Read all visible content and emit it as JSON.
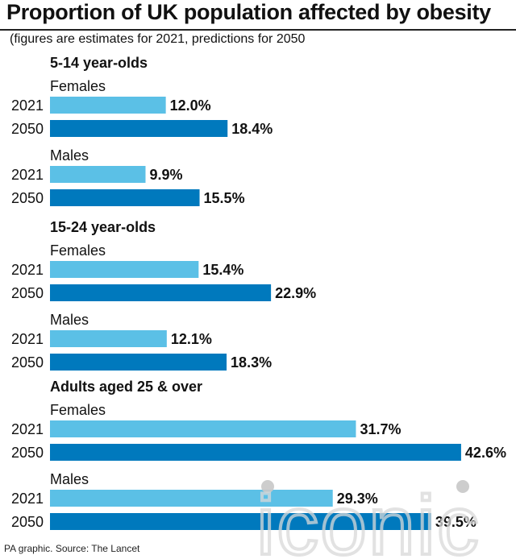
{
  "header": {
    "title": "Proportion of UK population affected by obesity",
    "subtitle": "(figures are estimates for 2021, predictions for 2050"
  },
  "footer": {
    "source": "PA graphic. Source: The Lancet"
  },
  "watermark": {
    "text": "iconic"
  },
  "colors": {
    "bar_2021": "#5bc0e6",
    "bar_2050": "#0079bd",
    "text": "#111111"
  },
  "chart_data": {
    "type": "bar",
    "orientation": "horizontal",
    "unit": "%",
    "groups": [
      {
        "label": "5-14 year-olds",
        "subgroups": [
          {
            "label": "Females",
            "bars": [
              {
                "year": "2021",
                "value": 12.0,
                "label": "12.0%"
              },
              {
                "year": "2050",
                "value": 18.4,
                "label": "18.4%"
              }
            ]
          },
          {
            "label": "Males",
            "bars": [
              {
                "year": "2021",
                "value": 9.9,
                "label": "9.9%"
              },
              {
                "year": "2050",
                "value": 15.5,
                "label": "15.5%"
              }
            ]
          }
        ]
      },
      {
        "label": "15-24 year-olds",
        "subgroups": [
          {
            "label": "Females",
            "bars": [
              {
                "year": "2021",
                "value": 15.4,
                "label": "15.4%"
              },
              {
                "year": "2050",
                "value": 22.9,
                "label": "22.9%"
              }
            ]
          },
          {
            "label": "Males",
            "bars": [
              {
                "year": "2021",
                "value": 12.1,
                "label": "12.1%"
              },
              {
                "year": "2050",
                "value": 18.3,
                "label": "18.3%"
              }
            ]
          }
        ]
      },
      {
        "label": "Adults aged 25 & over",
        "subgroups": [
          {
            "label": "Females",
            "bars": [
              {
                "year": "2021",
                "value": 31.7,
                "label": "31.7%"
              },
              {
                "year": "2050",
                "value": 42.6,
                "label": "42.6%"
              }
            ]
          },
          {
            "label": "Males",
            "bars": [
              {
                "year": "2021",
                "value": 29.3,
                "label": "29.3%"
              },
              {
                "year": "2050",
                "value": 39.5,
                "label": "39.5%"
              }
            ]
          }
        ]
      }
    ]
  }
}
